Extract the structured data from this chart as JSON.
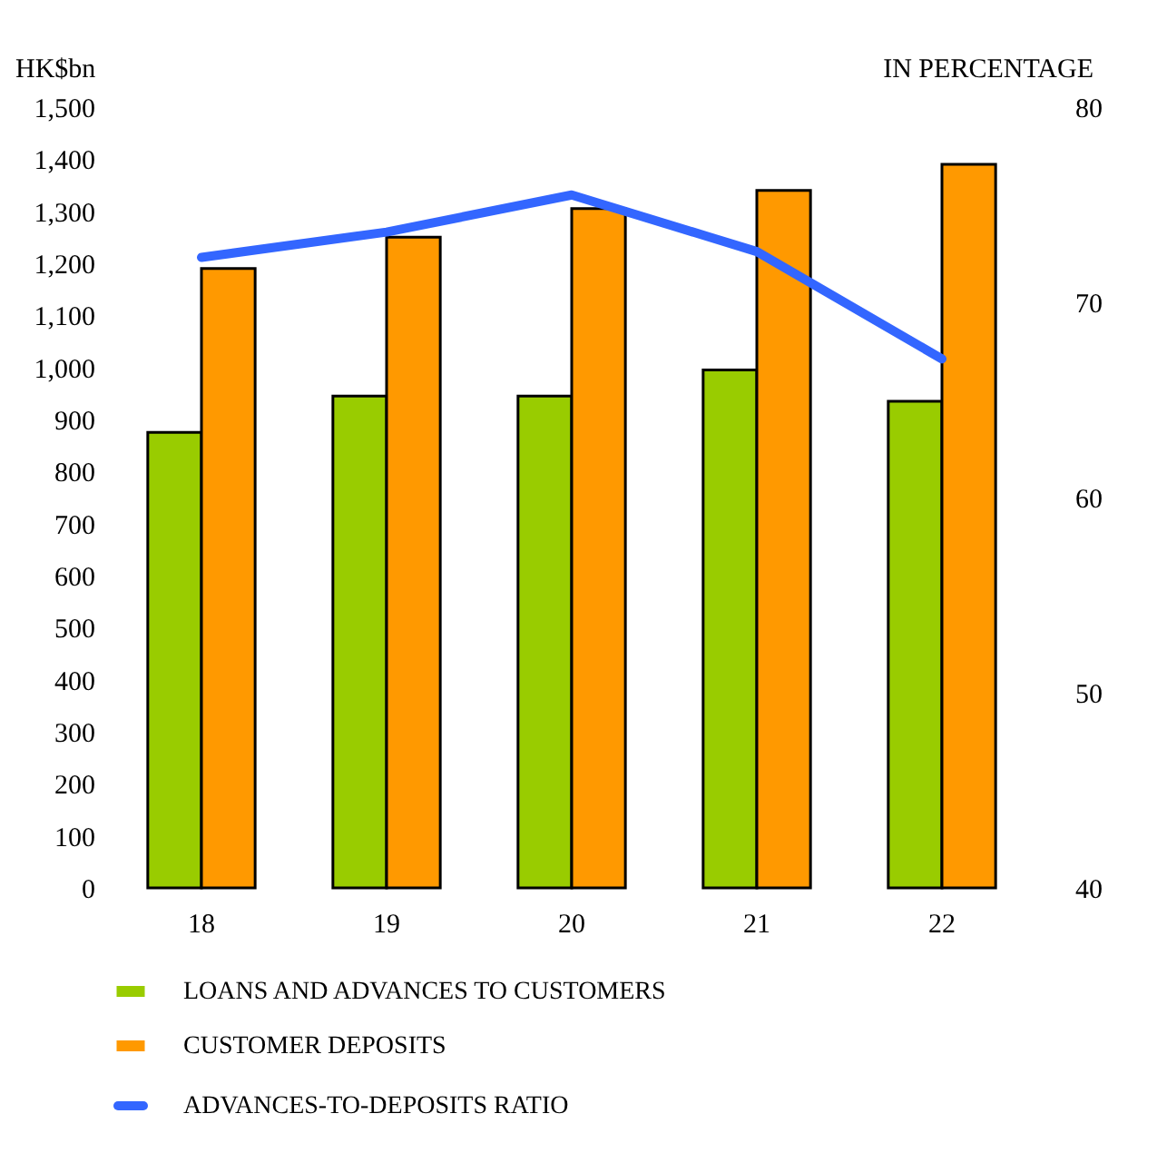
{
  "chart_data": {
    "type": "bar",
    "ylabel": "HK$bn",
    "y2label": "IN PERCENTAGE",
    "categories": [
      "18",
      "19",
      "20",
      "21",
      "22"
    ],
    "series": [
      {
        "name": "LOANS AND ADVANCES TO CUSTOMERS",
        "color": "#99cc00",
        "values": [
          875,
          945,
          945,
          995,
          935
        ]
      },
      {
        "name": "CUSTOMER DEPOSITS",
        "color": "#ff9900",
        "values": [
          1190,
          1250,
          1305,
          1340,
          1390
        ]
      },
      {
        "name": "ADVANCES-TO-DEPOSITS RATIO",
        "type": "line",
        "axis": "y2",
        "color": "#3366ff",
        "values": [
          72.3,
          73.6,
          75.5,
          72.6,
          67.1
        ]
      }
    ],
    "ylim": [
      0,
      1500
    ],
    "yticks": [
      0,
      100,
      200,
      300,
      400,
      500,
      600,
      700,
      800,
      900,
      {
        "value": 1000,
        "label": "1,000"
      },
      {
        "value": 1100,
        "label": "1,100"
      },
      {
        "value": 1200,
        "label": "1,200"
      },
      {
        "value": 1300,
        "label": "1,300"
      },
      {
        "value": 1400,
        "label": "1,400"
      },
      {
        "value": 1500,
        "label": "1,500"
      }
    ],
    "y2lim": [
      40,
      80
    ],
    "y2ticks": [
      40,
      50,
      60,
      70,
      80
    ],
    "grid": false,
    "legend": "bottom"
  }
}
